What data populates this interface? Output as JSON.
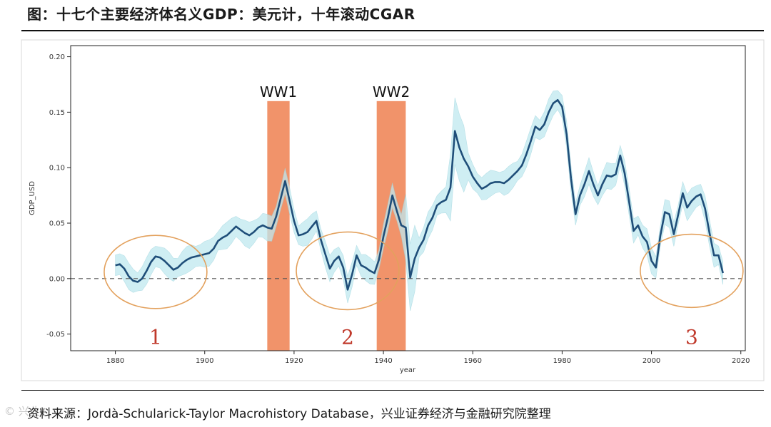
{
  "header": {
    "title": "图：十七个主要经济体名义GDP：美元计，十年滚动CGAR"
  },
  "footer": {
    "source": "资料来源：Jordà-Schularick-Taylor Macrohistory Database，兴业证券经济与金融研究院整理",
    "watermark": "© 兴业"
  },
  "colors": {
    "line": "#1f4e79",
    "band": "#bfe9f0",
    "war_shading": "#f08d62",
    "annotation_circle": "#e3a15d",
    "annotation_number": "#c0392b"
  },
  "chart_data": {
    "type": "line",
    "title": "",
    "xlabel": "year",
    "ylabel": "GDP_USD",
    "xlim": [
      1870,
      2021
    ],
    "ylim": [
      -0.065,
      0.21
    ],
    "xticks": [
      1880,
      1900,
      1920,
      1940,
      1960,
      1980,
      2000,
      2020
    ],
    "yticks": [
      -0.05,
      0.0,
      0.05,
      0.1,
      0.15,
      0.2
    ],
    "ytick_labels": [
      "-0.05",
      "0.00",
      "0.05",
      "0.10",
      "0.15",
      "0.20"
    ],
    "grid": false,
    "zero_line": "dashed",
    "series": [
      {
        "x": [
          1880,
          1881,
          1882,
          1883,
          1884,
          1885,
          1886,
          1887,
          1888,
          1889,
          1890,
          1891,
          1892,
          1893,
          1894,
          1895,
          1896,
          1897,
          1898,
          1899,
          1900,
          1901,
          1902,
          1903,
          1904,
          1905,
          1906,
          1907,
          1908,
          1909,
          1910,
          1911,
          1912,
          1913,
          1914,
          1915,
          1916,
          1917,
          1918,
          1919,
          1920,
          1921,
          1922,
          1923,
          1924,
          1925,
          1926,
          1927,
          1928,
          1929,
          1930,
          1931,
          1932,
          1933,
          1934,
          1935,
          1936,
          1937,
          1938,
          1939,
          1940,
          1941,
          1942,
          1943,
          1944,
          1945,
          1946,
          1947,
          1948,
          1949,
          1950,
          1951,
          1952,
          1953,
          1954,
          1955,
          1956,
          1957,
          1958,
          1959,
          1960,
          1961,
          1962,
          1963,
          1964,
          1965,
          1966,
          1967,
          1968,
          1969,
          1970,
          1971,
          1972,
          1973,
          1974,
          1975,
          1976,
          1977,
          1978,
          1979,
          1980,
          1981,
          1982,
          1983,
          1984,
          1985,
          1986,
          1987,
          1988,
          1989,
          1990,
          1991,
          1992,
          1993,
          1994,
          1995,
          1996,
          1997,
          1998,
          1999,
          2000,
          2001,
          2002,
          2003,
          2004,
          2005,
          2006,
          2007,
          2008,
          2009,
          2010,
          2011,
          2012,
          2013,
          2014,
          2015,
          2016
        ],
        "y": [
          0.012,
          0.013,
          0.009,
          0.002,
          -0.002,
          -0.003,
          0.0,
          0.007,
          0.015,
          0.02,
          0.019,
          0.016,
          0.012,
          0.008,
          0.01,
          0.014,
          0.017,
          0.019,
          0.02,
          0.021,
          0.022,
          0.023,
          0.027,
          0.034,
          0.037,
          0.039,
          0.043,
          0.047,
          0.044,
          0.041,
          0.039,
          0.042,
          0.046,
          0.048,
          0.046,
          0.045,
          0.056,
          0.072,
          0.088,
          0.07,
          0.052,
          0.039,
          0.04,
          0.042,
          0.047,
          0.052,
          0.035,
          0.022,
          0.009,
          0.016,
          0.02,
          0.01,
          -0.01,
          0.004,
          0.021,
          0.012,
          0.01,
          0.007,
          0.005,
          0.017,
          0.038,
          0.055,
          0.075,
          0.061,
          0.048,
          0.046,
          0.001,
          0.018,
          0.028,
          0.035,
          0.048,
          0.055,
          0.066,
          0.069,
          0.071,
          0.082,
          0.133,
          0.118,
          0.108,
          0.101,
          0.092,
          0.086,
          0.081,
          0.083,
          0.086,
          0.087,
          0.087,
          0.086,
          0.089,
          0.093,
          0.097,
          0.102,
          0.112,
          0.124,
          0.137,
          0.134,
          0.139,
          0.15,
          0.158,
          0.161,
          0.155,
          0.13,
          0.09,
          0.058,
          0.075,
          0.085,
          0.097,
          0.085,
          0.075,
          0.085,
          0.093,
          0.092,
          0.094,
          0.111,
          0.095,
          0.069,
          0.043,
          0.048,
          0.038,
          0.033,
          0.016,
          0.01,
          0.039,
          0.06,
          0.058,
          0.04,
          0.058,
          0.077,
          0.064,
          0.07,
          0.074,
          0.076,
          0.063,
          0.041,
          0.021,
          0.021,
          0.005
        ]
      }
    ],
    "shaded_periods": [
      {
        "label": "WW1",
        "x": [
          1914,
          1919
        ]
      },
      {
        "label": "WW2",
        "x": [
          1938.5,
          1945
        ]
      }
    ],
    "annotations": [
      {
        "label": "1",
        "center_x": 1889,
        "center_y": 0.006,
        "rx_years": 11.5,
        "ry_units": 0.033
      },
      {
        "label": "2",
        "center_x": 1932,
        "center_y": 0.007,
        "rx_years": 11.5,
        "ry_units": 0.035
      },
      {
        "label": "3",
        "center_x": 2009,
        "center_y": 0.007,
        "rx_years": 11.5,
        "ry_units": 0.033
      }
    ]
  }
}
